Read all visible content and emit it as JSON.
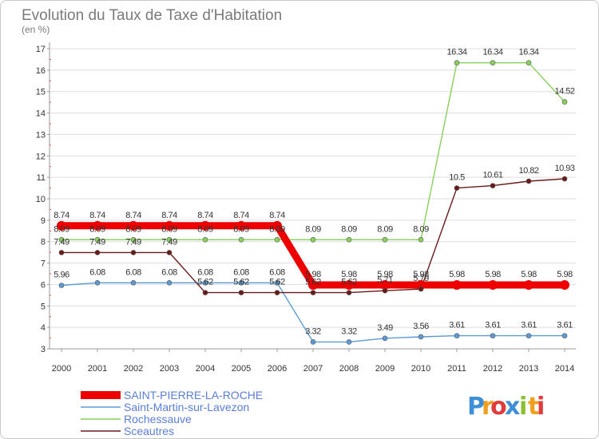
{
  "chart_data": {
    "type": "line",
    "title": "Evolution du Taux de Taxe d'Habitation",
    "subtitle": "(en %)",
    "x": [
      "2000",
      "2001",
      "2002",
      "2003",
      "2004",
      "2005",
      "2006",
      "2007",
      "2008",
      "2009",
      "2010",
      "2011",
      "2012",
      "2013",
      "2014"
    ],
    "ylim": [
      3,
      17
    ],
    "yticks": [
      3,
      4,
      5,
      6,
      7,
      8,
      9,
      10,
      11,
      12,
      13,
      14,
      15,
      16,
      17
    ],
    "grid": "horizontal",
    "legend_position": "bottom-left",
    "series": [
      {
        "name": "SAINT-PIERRE-LA-ROCHE",
        "color": "#ee0000",
        "values": [
          8.74,
          8.74,
          8.74,
          8.74,
          8.74,
          8.74,
          8.74,
          5.98,
          5.98,
          5.98,
          5.98,
          5.98,
          5.98,
          5.98,
          5.98
        ],
        "labels": [
          "8.74",
          "8.74",
          "8.74",
          "8.74",
          "8.74",
          "8.74",
          "8.74",
          "5.98",
          "5.98",
          "5.98",
          "5.98",
          "5.98",
          "5.98",
          "5.98",
          "5.98"
        ]
      },
      {
        "name": "Saint-Martin-sur-Lavezon",
        "color": "#5b9bd5",
        "values": [
          5.96,
          6.08,
          6.08,
          6.08,
          6.08,
          6.08,
          6.08,
          3.32,
          3.32,
          3.49,
          3.56,
          3.61,
          3.61,
          3.61,
          3.61
        ],
        "labels": [
          "5.96",
          "6.08",
          "6.08",
          "6.08",
          "6.08",
          "6.08",
          "6.08",
          "3.32",
          "3.32",
          "3.49",
          "3.56",
          "3.61",
          "3.61",
          "3.61",
          "3.61"
        ]
      },
      {
        "name": "Rochessauve",
        "color": "#88d15a",
        "values": [
          8.09,
          8.09,
          8.09,
          8.09,
          8.09,
          8.09,
          8.09,
          8.09,
          8.09,
          8.09,
          8.09,
          16.34,
          16.34,
          16.34,
          14.52
        ],
        "labels": [
          "8.09",
          "8.09",
          "8.09",
          "8.09",
          "8.09",
          "8.09",
          "8.09",
          "8.09",
          "8.09",
          "8.09",
          "8.09",
          "16.34",
          "16.34",
          "16.34",
          "14.52"
        ]
      },
      {
        "name": "Sceautres",
        "color": "#6b1a1a",
        "values": [
          7.49,
          7.49,
          7.49,
          7.49,
          5.62,
          5.62,
          5.62,
          5.62,
          5.62,
          5.71,
          5.79,
          10.5,
          10.61,
          10.82,
          10.93
        ],
        "labels": [
          "7.49",
          "7.49",
          "7.49",
          "7.49",
          "5.62",
          "5.62",
          "5.62",
          "5.62",
          "5.62",
          "5.71",
          "5.79",
          "10.5",
          "10.61",
          "10.82",
          "10.93"
        ]
      }
    ]
  },
  "logo": {
    "letters": [
      "P",
      "r",
      "o",
      "x",
      "i",
      "t",
      "i"
    ],
    "colors": [
      "#3c8fd8",
      "#f0a020",
      "#e03c3c",
      "#3c8fd8",
      "#88c030",
      "#f0a020",
      "#e03c3c"
    ]
  }
}
